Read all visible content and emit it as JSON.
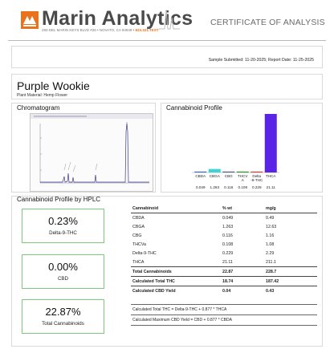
{
  "header": {
    "brand": "Marin Analytics",
    "address": "250 DEL MARIN KEYS BLVD #26 • NOVATO, CA 94949 •",
    "phone": "833.321.TEST",
    "doc_type": "CERTIFICATE OF ANALYSIS",
    "logo_color": "#e8731c"
  },
  "info": {
    "dates": "Sample Submitted: 11-20-2025; Report Date: 11-25-2025"
  },
  "product": {
    "name": "Purple Wookie",
    "material": "Plant Material: Hemp Flower"
  },
  "chromatogram": {
    "title": "Chromatogram"
  },
  "profile_chart": {
    "title": "Cannabinoid Profile"
  },
  "chart_data": {
    "type": "bar",
    "categories": [
      "CBDA",
      "CBGA",
      "CBG",
      "THCVA",
      "Delta-9-THC",
      "THCA"
    ],
    "category_labels": [
      "CBDA",
      "CBGA",
      "CBG",
      "THCV\nA",
      "Delta\n-9-THC",
      "THCA"
    ],
    "values": [
      0.049,
      1.263,
      0.116,
      0.108,
      0.229,
      21.11
    ],
    "value_labels": [
      "0.049",
      "1.263",
      "0.116",
      "0.108",
      "0.229",
      "21.11"
    ],
    "colors": [
      "#3a6ad6",
      "#3fd3d3",
      "#5c5c8a",
      "#2a9b2a",
      "#d84040",
      "#5a24e6"
    ],
    "ylim": [
      0,
      21.11
    ]
  },
  "hplc": {
    "title": "Cannabinoid Profile by HPLC",
    "summary": [
      {
        "value": "0.23%",
        "label": "Delta-9-THC"
      },
      {
        "value": "0.00%",
        "label": "CBD"
      },
      {
        "value": "22.87%",
        "label": "Total Cannabinoids"
      }
    ],
    "table": {
      "headers": [
        "Cannabinoid",
        "% wt",
        "mg/g"
      ],
      "rows": [
        [
          "CBDA",
          "0.049",
          "0.49"
        ],
        [
          "CBGA",
          "1.263",
          "12.63"
        ],
        [
          "CBG",
          "0.116",
          "1.16"
        ],
        [
          "THCVa",
          "0.108",
          "1.08"
        ],
        [
          "Delta-9-THC",
          "0.229",
          "2.29"
        ],
        [
          "THCA",
          "21.11",
          "211.1"
        ]
      ],
      "totals": [
        [
          "Total Cannabinoids",
          "22.87",
          "228.7"
        ],
        [
          "Calculated Total THC",
          "18.74",
          "187.42"
        ],
        [
          "Calculated CBD Yield",
          "0.04",
          "0.43"
        ]
      ]
    },
    "notes": [
      "Calculated Total THC = Delta-9-THC + 0.877 * THCA",
      "Calculated Maximum CBD Yield = CBD + 0.877 * CBDA"
    ]
  }
}
